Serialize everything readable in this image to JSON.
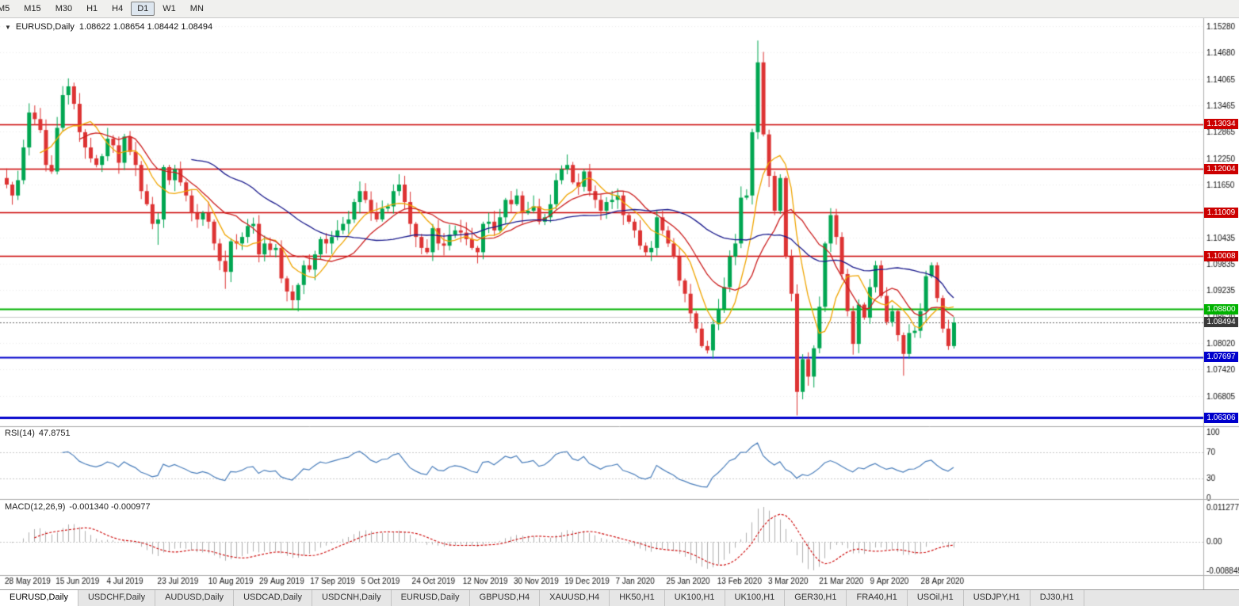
{
  "toolbar": {
    "timeframes": [
      "M5",
      "M15",
      "M30",
      "H1",
      "H4",
      "D1",
      "W1",
      "MN"
    ],
    "selected": "D1"
  },
  "chart_header": {
    "symbol": "EURUSD,Daily",
    "ohlc": "1.08622 1.08654 1.08442 1.08494"
  },
  "rsi_panel": {
    "label": "RSI(14)",
    "value": "47.8751",
    "ticks": [
      "100",
      "70",
      "30",
      "0"
    ]
  },
  "macd_panel": {
    "label": "MACD(12,26,9)",
    "value": "-0.001340 -0.000977",
    "ticks": [
      "0.011277",
      "0.00",
      "-0.008845"
    ]
  },
  "tabs": [
    "EURUSD,Daily",
    "USDCHF,Daily",
    "AUDUSD,Daily",
    "USDCAD,Daily",
    "USDCNH,Daily",
    "EURUSD,Daily",
    "GBPUSD,H4",
    "XAUUSD,H4",
    "HK50,H1",
    "UK100,H1",
    "UK100,H1",
    "GER30,H1",
    "FRA40,H1",
    "USOil,H1",
    "USDJPY,H1",
    "DJ30,H1"
  ],
  "active_tab": "EURUSD,Daily",
  "colors": {
    "candle_up": "#00a651",
    "candle_down": "#dd3333",
    "ma_fast": "#f0a500",
    "ma_mid": "#cc2020",
    "ma_slow": "#1a1a8c",
    "rsi_line": "#4a7ebb",
    "macd_hist": "#b0b0b0",
    "macd_signal": "#cc0000",
    "level_red": "#cc0000",
    "level_green": "#00b200",
    "level_blue": "#0000cc",
    "current_badge": "#3a3a3a"
  },
  "chart_data": {
    "type": "candlestick",
    "symbol": "EURUSD",
    "timeframe": "Daily",
    "current": {
      "open": 1.08622,
      "high": 1.08654,
      "low": 1.08442,
      "close": 1.08494
    },
    "y_ticks": [
      "1.15280",
      "1.14680",
      "1.14065",
      "1.13465",
      "1.12865",
      "1.12250",
      "1.11650",
      "1.10435",
      "1.09835",
      "1.09235",
      "1.08620",
      "1.08020",
      "1.07420",
      "1.06805"
    ],
    "x_labels": [
      "28 May 2019",
      "15 Jun 2019",
      "4 Jul 2019",
      "23 Jul 2019",
      "10 Aug 2019",
      "29 Aug 2019",
      "17 Sep 2019",
      "5 Oct 2019",
      "24 Oct 2019",
      "12 Nov 2019",
      "30 Nov 2019",
      "19 Dec 2019",
      "7 Jan 2020",
      "25 Jan 2020",
      "13 Feb 2020",
      "3 Mar 2020",
      "21 Mar 2020",
      "9 Apr 2020",
      "28 Apr 2020"
    ],
    "hlines": [
      {
        "label": "1.13034",
        "value": 1.13034,
        "color": "#cc0000",
        "width": 1.4
      },
      {
        "label": "1.12004",
        "value": 1.12004,
        "color": "#cc0000",
        "width": 1.4
      },
      {
        "label": "1.11009",
        "value": 1.11009,
        "color": "#cc0000",
        "width": 1.4
      },
      {
        "label": "1.10008",
        "value": 1.10008,
        "color": "#cc0000",
        "width": 1.4
      },
      {
        "label": "1.08800",
        "value": 1.088,
        "color": "#00b200",
        "width": 2
      },
      {
        "label": "1.07697",
        "value": 1.07697,
        "color": "#0000cc",
        "width": 2
      },
      {
        "label": "1.06306",
        "value": 1.06306,
        "color": "#0000cc",
        "width": 3
      }
    ],
    "current_price_label": {
      "label": "1.08494",
      "value": 1.08494
    },
    "closes": [
      1.1165,
      1.114,
      1.1175,
      1.125,
      1.133,
      1.1315,
      1.129,
      1.121,
      1.1195,
      1.1295,
      1.137,
      1.139,
      1.135,
      1.1285,
      1.125,
      1.1225,
      1.121,
      1.123,
      1.127,
      1.1255,
      1.1215,
      1.1275,
      1.124,
      1.121,
      1.115,
      1.112,
      1.1075,
      1.1085,
      1.1205,
      1.1175,
      1.12,
      1.117,
      1.114,
      1.11,
      1.1085,
      1.11,
      1.108,
      1.103,
      1.099,
      1.0965,
      1.1035,
      1.103,
      1.1045,
      1.107,
      1.1075,
      1.1005,
      1.103,
      1.1015,
      1.102,
      1.095,
      1.092,
      1.09,
      1.0935,
      1.098,
      1.097,
      1.1005,
      1.104,
      1.103,
      1.1045,
      1.106,
      1.1075,
      1.1085,
      1.1125,
      1.115,
      1.113,
      1.11,
      1.1085,
      1.111,
      1.1115,
      1.115,
      1.1165,
      1.1125,
      1.1075,
      1.1045,
      1.102,
      1.101,
      1.1065,
      1.103,
      1.1025,
      1.105,
      1.106,
      1.1055,
      1.104,
      1.102,
      1.101,
      1.1075,
      1.108,
      1.106,
      1.109,
      1.113,
      1.112,
      1.114,
      1.11,
      1.1105,
      1.1115,
      1.108,
      1.109,
      1.112,
      1.1175,
      1.12,
      1.121,
      1.117,
      1.116,
      1.1195,
      1.115,
      1.113,
      1.1105,
      1.1125,
      1.113,
      1.114,
      1.1095,
      1.108,
      1.106,
      1.1025,
      1.101,
      1.102,
      1.109,
      1.106,
      1.103,
      1.1,
      1.0945,
      1.0915,
      1.087,
      1.0835,
      1.0795,
      1.0785,
      1.0845,
      1.088,
      1.093,
      1.1,
      1.103,
      1.1135,
      1.114,
      1.1285,
      1.1445,
      1.128,
      1.1185,
      1.1105,
      1.118,
      1.1,
      1.0915,
      1.069,
      1.0765,
      1.0725,
      1.079,
      1.0885,
      1.103,
      1.1095,
      1.1045,
      1.096,
      1.0875,
      1.08,
      1.089,
      1.086,
      1.093,
      1.098,
      1.091,
      1.085,
      1.0875,
      1.082,
      1.0777,
      1.0825,
      1.083,
      1.0875,
      1.0955,
      1.098,
      1.0905,
      1.0835,
      1.0795,
      1.0849
    ],
    "wick_overrides": {
      "27": {
        "low": 1.1027
      },
      "39": {
        "low": 1.0926
      },
      "51": {
        "low": 1.0879
      },
      "125": {
        "low": 1.0778
      },
      "134": {
        "high": 1.1495
      },
      "141": {
        "low": 1.0636
      },
      "160": {
        "low": 1.0727
      }
    },
    "moving_averages": [
      {
        "period": 7,
        "color": "#f0a500"
      },
      {
        "period": 14,
        "color": "#cc2020"
      },
      {
        "period": 34,
        "color": "#1a1a8c"
      }
    ],
    "rsi": {
      "period": 14,
      "last": 47.8751,
      "levels": [
        70,
        30
      ],
      "range": [
        0,
        100
      ]
    },
    "macd": {
      "fast": 12,
      "slow": 26,
      "signal": 9,
      "last": -0.00134,
      "last_signal": -0.000977,
      "scale_max": 0.011277,
      "scale_min": -0.008845
    }
  }
}
